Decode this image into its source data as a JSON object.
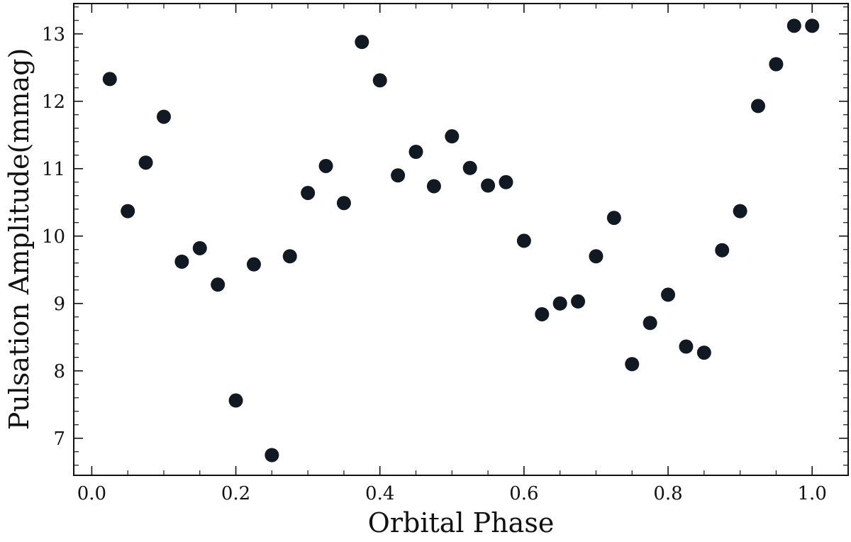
{
  "chart_data": {
    "type": "scatter",
    "title": "",
    "xlabel": "Orbital Phase",
    "ylabel": "Pulsation Amplitude(mmag)",
    "xlim": [
      -0.025,
      1.05
    ],
    "ylim": [
      6.45,
      13.45
    ],
    "x_ticks": [
      0.0,
      0.2,
      0.4,
      0.6,
      0.8,
      1.0
    ],
    "x_tick_labels": [
      "0.0",
      "0.2",
      "0.4",
      "0.6",
      "0.8",
      "1.0"
    ],
    "y_ticks": [
      7,
      8,
      9,
      10,
      11,
      12,
      13
    ],
    "y_tick_labels": [
      "7",
      "8",
      "9",
      "10",
      "11",
      "12",
      "13"
    ],
    "grid": false,
    "legend": "none",
    "marker_color": "#111a22",
    "x": [
      0.025,
      0.05,
      0.075,
      0.1,
      0.125,
      0.15,
      0.175,
      0.2,
      0.225,
      0.25,
      0.275,
      0.3,
      0.325,
      0.35,
      0.375,
      0.4,
      0.425,
      0.45,
      0.475,
      0.5,
      0.525,
      0.55,
      0.575,
      0.6,
      0.625,
      0.65,
      0.675,
      0.7,
      0.725,
      0.75,
      0.775,
      0.8,
      0.825,
      0.85,
      0.875,
      0.9,
      0.925,
      0.95,
      0.975,
      1.0
    ],
    "y": [
      12.33,
      10.37,
      11.09,
      11.77,
      9.62,
      9.82,
      9.28,
      7.56,
      9.58,
      6.75,
      9.7,
      10.64,
      11.04,
      10.49,
      12.88,
      12.31,
      10.9,
      11.25,
      10.74,
      11.48,
      11.01,
      10.75,
      10.8,
      9.93,
      8.84,
      9.0,
      9.03,
      9.7,
      10.27,
      8.1,
      8.71,
      9.13,
      8.36,
      8.27,
      9.79,
      10.37,
      11.93,
      12.55,
      13.12,
      13.12
    ]
  }
}
